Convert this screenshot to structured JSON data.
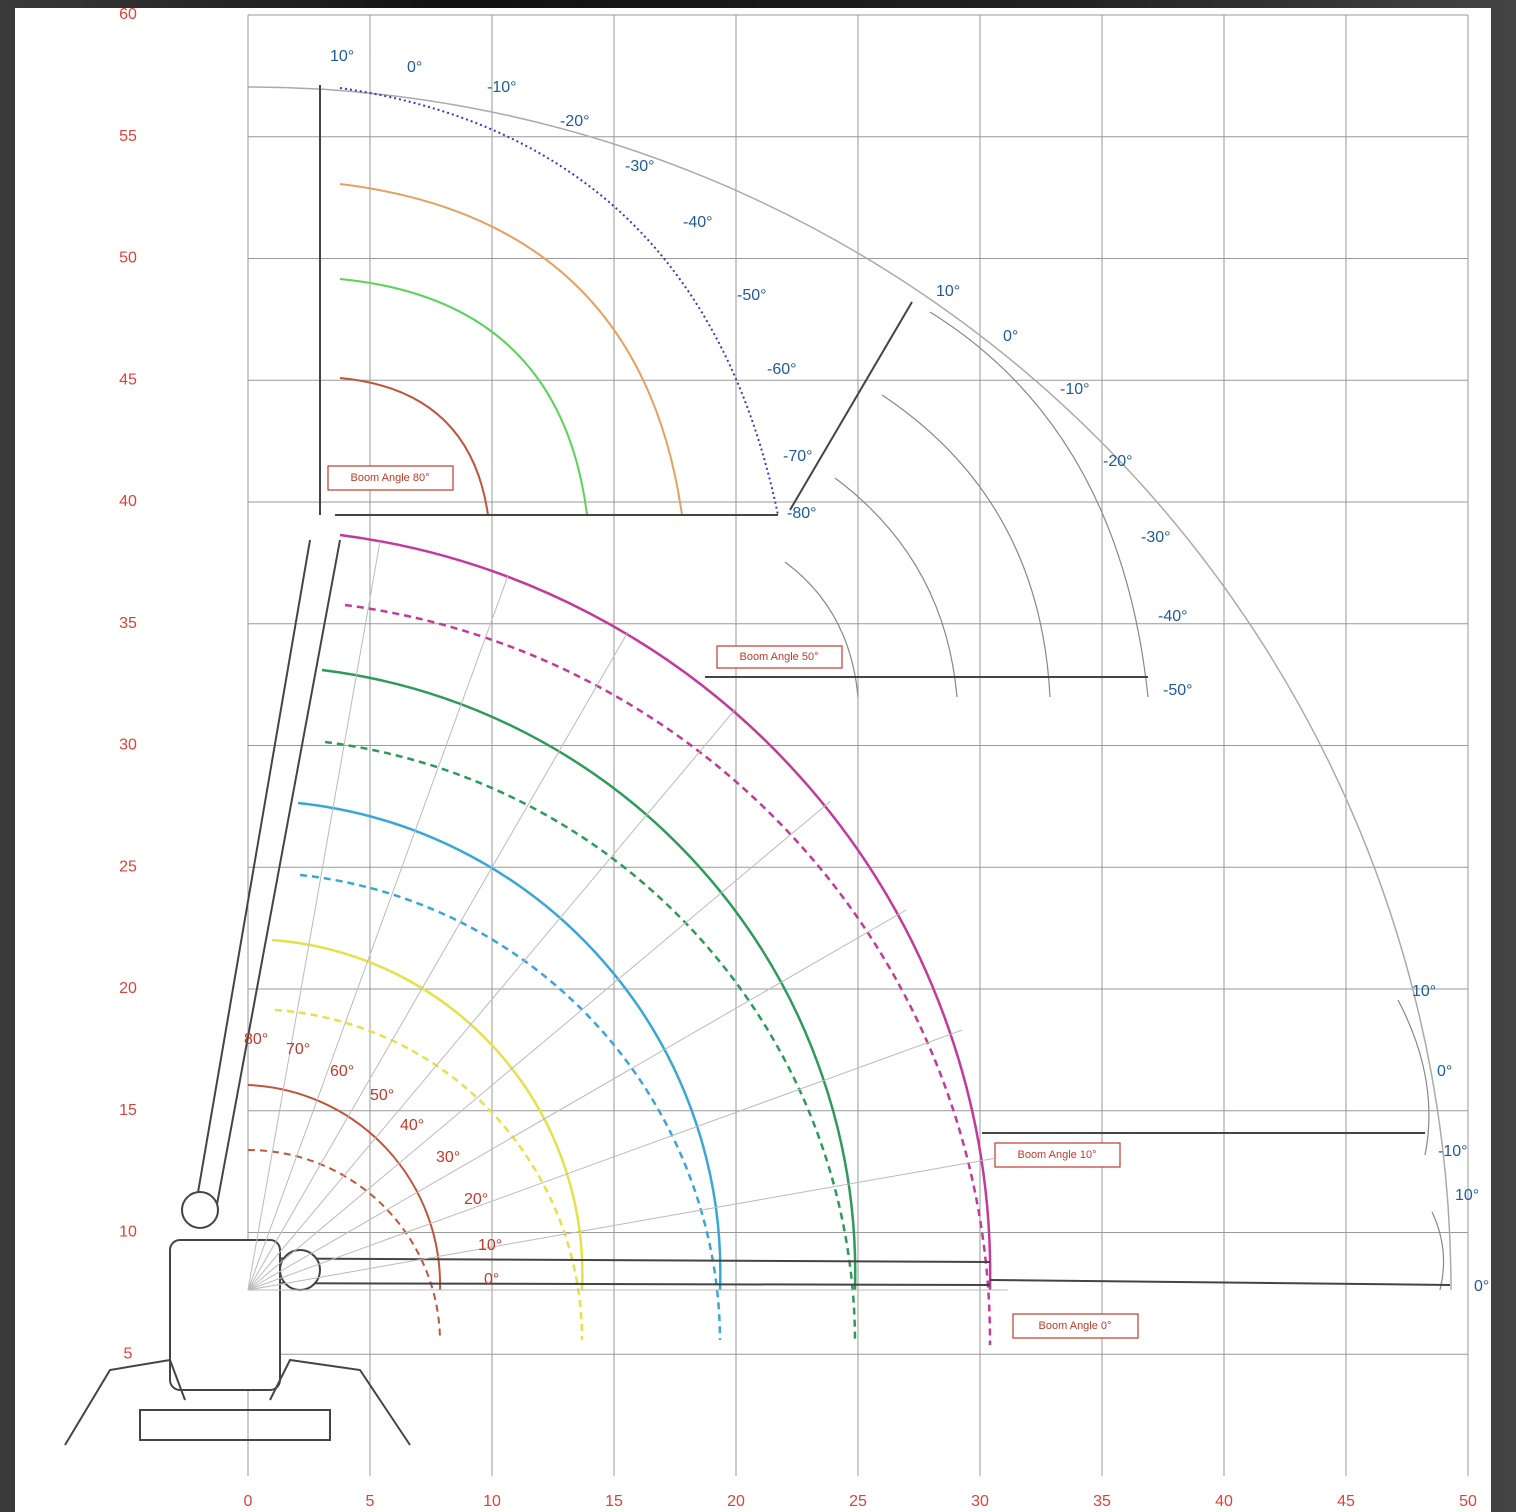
{
  "axes": {
    "xticks": [
      0,
      5,
      10,
      15,
      20,
      25,
      30,
      35,
      40,
      45,
      50
    ],
    "yticks": [
      5,
      10,
      15,
      20,
      25,
      30,
      35,
      40,
      45,
      50,
      55,
      60
    ]
  },
  "boom_angles": [
    "80°",
    "70°",
    "60°",
    "50°",
    "40°",
    "30°",
    "20°",
    "10°",
    "0°"
  ],
  "jib_80": [
    "10°",
    "0°",
    "-10°",
    "-20°",
    "-30°",
    "-40°",
    "-50°",
    "-60°",
    "-70°",
    "-80°"
  ],
  "jib_50": [
    "10°",
    "0°",
    "-10°",
    "-20°",
    "-30°",
    "-40°",
    "-50°"
  ],
  "jib_10": [
    "10°",
    "0°",
    "-10°"
  ],
  "jib_0": [
    "10°",
    "0°"
  ],
  "callouts": [
    "Boom Angle 80°",
    "Boom Angle 50°",
    "Boom Angle 10°",
    "Boom Angle 0°"
  ]
}
